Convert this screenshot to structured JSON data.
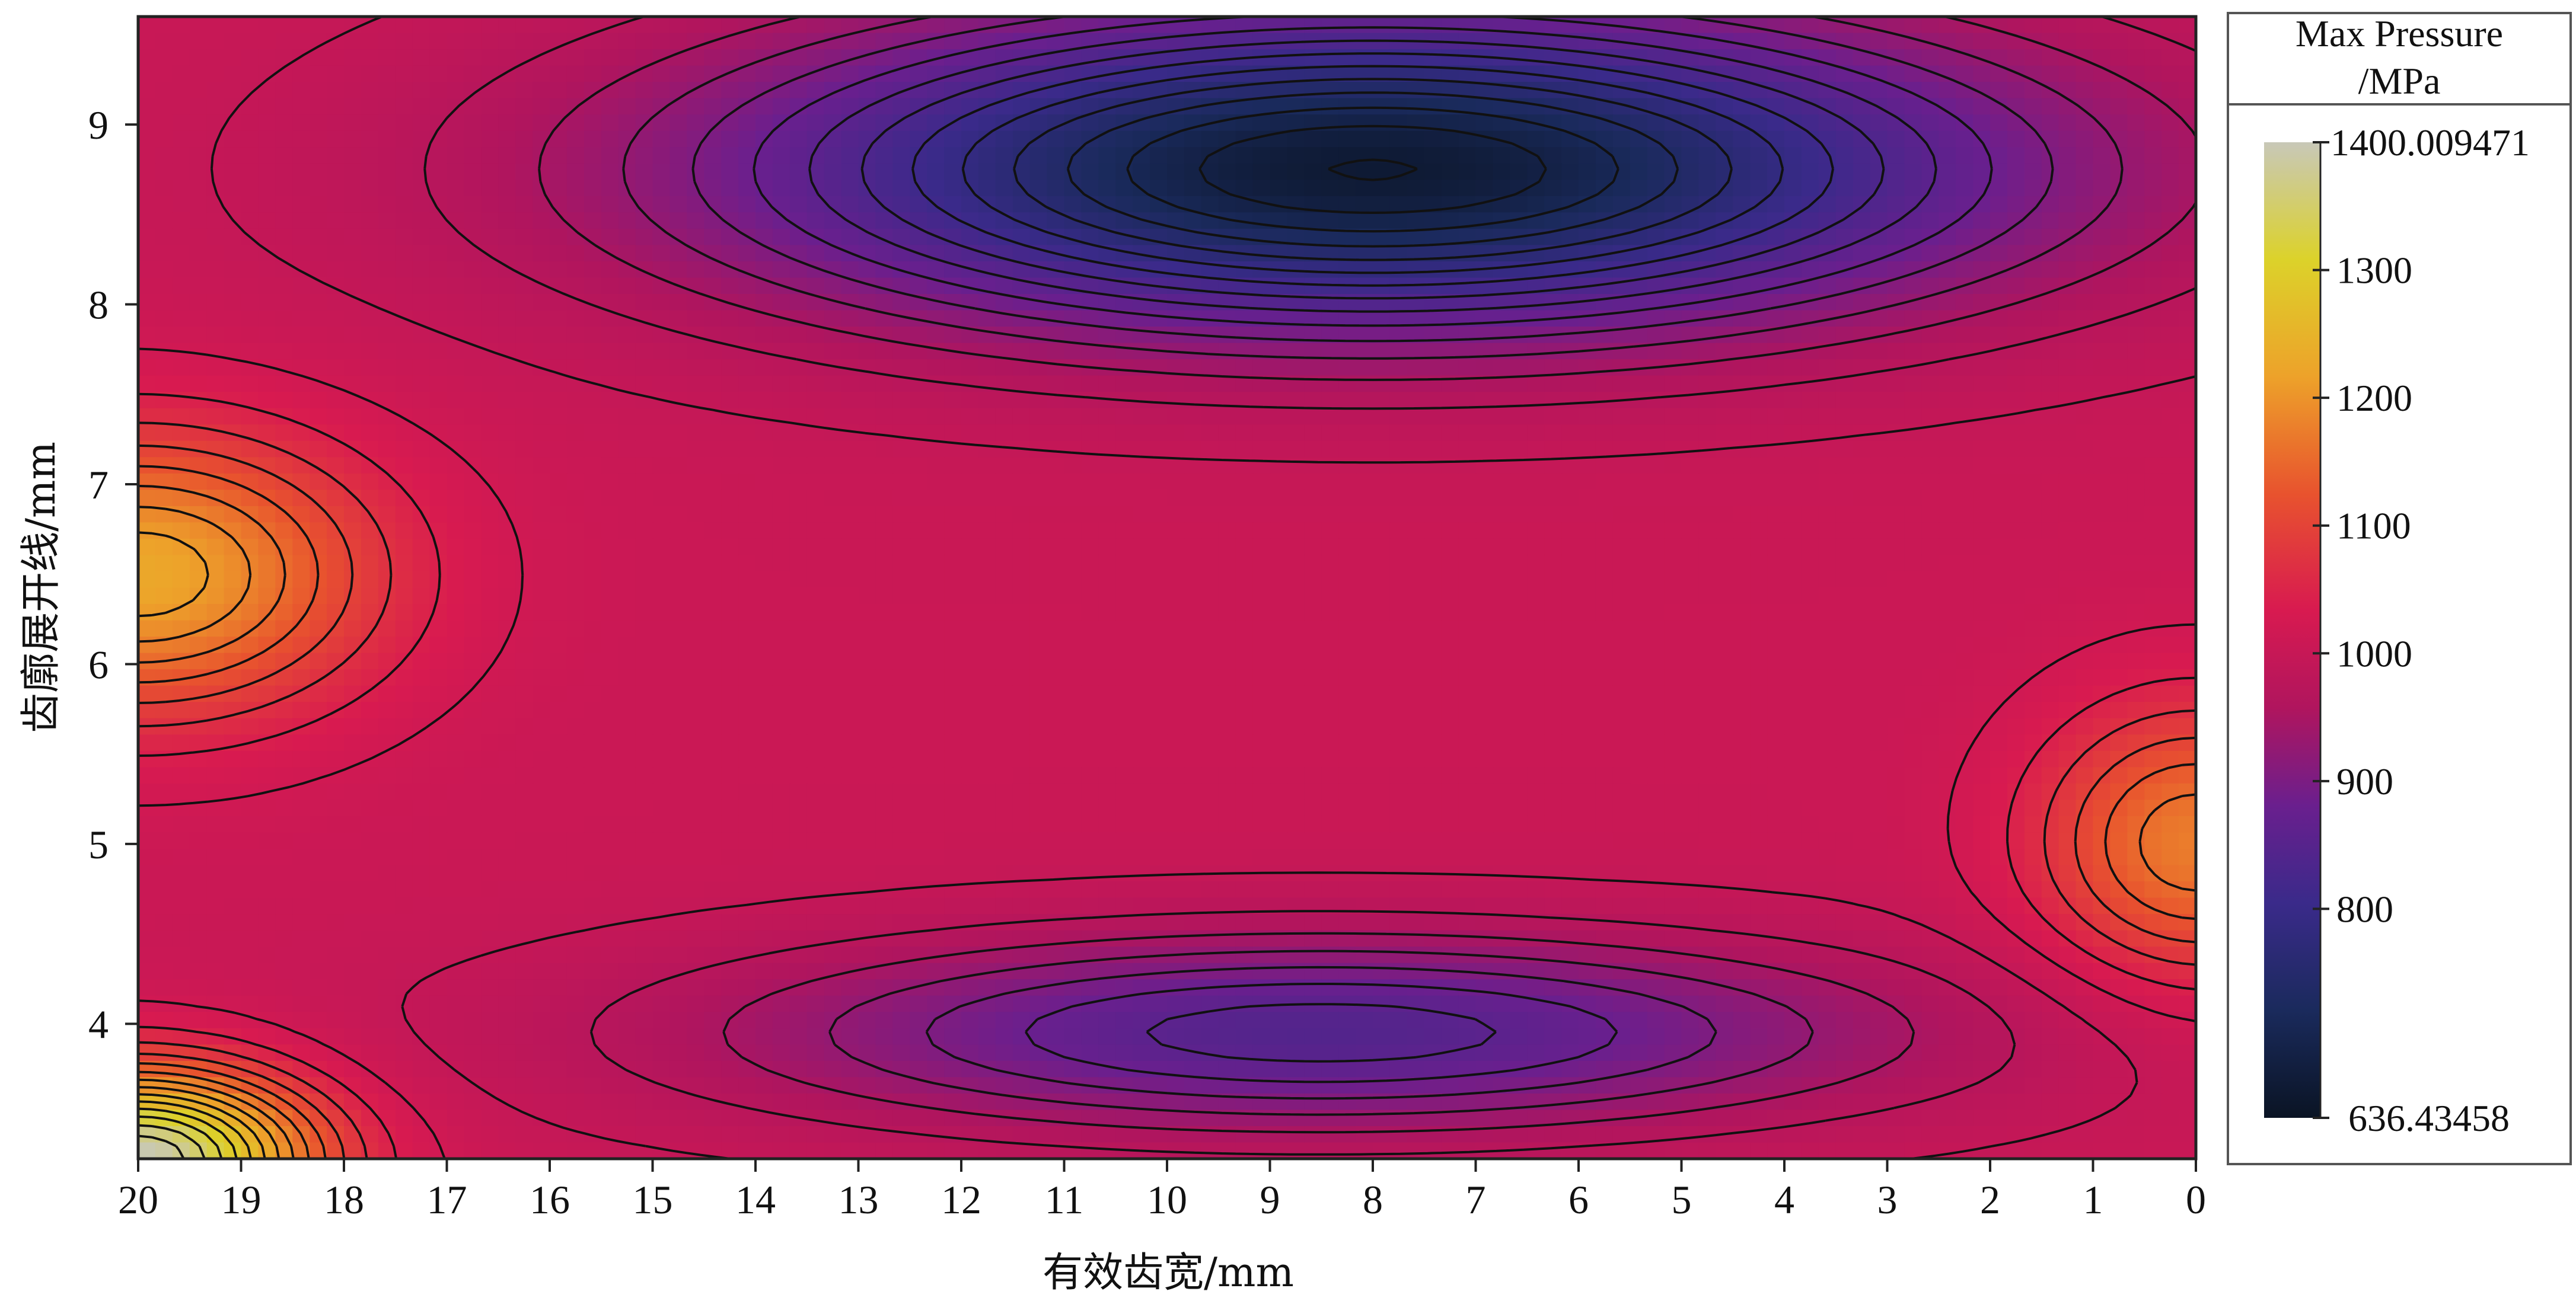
{
  "chart_data": {
    "type": "heatmap",
    "title": "",
    "xlabel": "有效齿宽/mm",
    "ylabel": "齿廓展开线/mm",
    "x_ticks": [
      20,
      19,
      18,
      17,
      16,
      15,
      14,
      13,
      12,
      11,
      10,
      9,
      8,
      7,
      6,
      5,
      4,
      3,
      2,
      1,
      0
    ],
    "y_ticks": [
      9,
      8,
      7,
      6,
      5,
      4
    ],
    "xlim": [
      20,
      0
    ],
    "x_reversed": true,
    "ylim": [
      3.25,
      9.6
    ],
    "grid": false,
    "legend_position": "right",
    "colorbar": {
      "title_line1": "Max Pressure",
      "title_line2": "/MPa",
      "max_label": "1400.009471",
      "min_label": "636.43458",
      "min": 636.43458,
      "max": 1400.009471,
      "ticks": [
        1300,
        1200,
        1100,
        1000,
        900,
        800
      ]
    },
    "colormap": [
      "#0a1424",
      "#1a2a5c",
      "#3a2a8a",
      "#6a1f8e",
      "#b0155e",
      "#d81a50",
      "#e8532e",
      "#eda22a",
      "#dcd22a",
      "#c8c8b8"
    ],
    "peaks": [
      {
        "x": 8.0,
        "y": 8.75,
        "value": 660,
        "sx": 4.3,
        "sy": 0.62
      },
      {
        "x": 8.5,
        "y": 3.95,
        "value": 850,
        "sx": 4.0,
        "sy": 0.38
      },
      {
        "x": 20.0,
        "y": 6.5,
        "value": 1240,
        "sx": 1.6,
        "sy": 0.55
      },
      {
        "x": 0.0,
        "y": 5.0,
        "value": 1190,
        "sx": 1.1,
        "sy": 0.55
      },
      {
        "x": 20.0,
        "y": 3.25,
        "value": 1400,
        "sx": 1.2,
        "sy": 0.35
      }
    ],
    "base_value": 1030,
    "contour_count": 30
  }
}
